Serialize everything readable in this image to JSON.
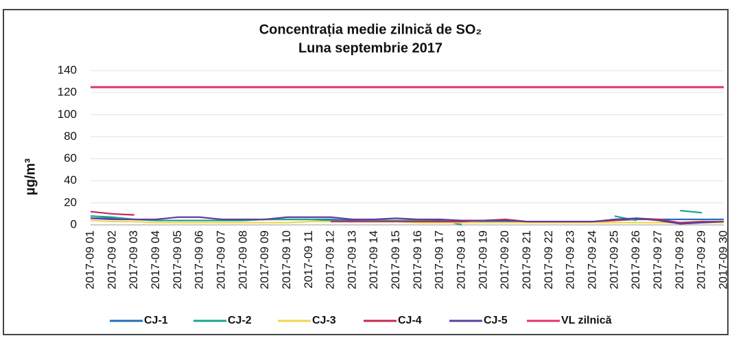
{
  "chart_data": {
    "type": "line",
    "title": "Concentrația medie zilnică de SO₂",
    "subtitle": "Luna septembrie 2017",
    "y_label": "µg/m³",
    "categories": [
      "2017-09 01",
      "2017-09 02",
      "2017-09 03",
      "2017-09 04",
      "2017-09 05",
      "2017-09 06",
      "2017-09 07",
      "2017-09 08",
      "2017-09 09",
      "2017-09 10",
      "2017-09 11",
      "2017-09 12",
      "2017-09 13",
      "2017-09 14",
      "2017-09 15",
      "2017-09 16",
      "2017-09 17",
      "2017-09 18",
      "2017-09 19",
      "2017-09 20",
      "2017-09 21",
      "2017-09 22",
      "2017-09 23",
      "2017-09 24",
      "2017-09 25",
      "2017-09 26",
      "2017-09 27",
      "2017-09 28",
      "2017-09 29",
      "2017-09 30"
    ],
    "series": [
      {
        "name": "CJ-1",
        "color": "#1f6fb5",
        "values": [
          6,
          6,
          5,
          4,
          4,
          4,
          4,
          4,
          5,
          5,
          5,
          5,
          4,
          4,
          4,
          4,
          4,
          4,
          3,
          3,
          3,
          3,
          3,
          3,
          4,
          5,
          5,
          5,
          5,
          5
        ]
      },
      {
        "name": "CJ-2",
        "color": "#1aa58a",
        "values": [
          8,
          7,
          5,
          4,
          4,
          4,
          4,
          4,
          5,
          5,
          5,
          4,
          3,
          4,
          4,
          4,
          5,
          0,
          null,
          null,
          null,
          null,
          null,
          null,
          8,
          4,
          null,
          13,
          11,
          null
        ]
      },
      {
        "name": "CJ-3",
        "color": "#f2d64b",
        "values": [
          4,
          3,
          3,
          2,
          2,
          2,
          2,
          2,
          2,
          2,
          3,
          3,
          3,
          3,
          3,
          2,
          2,
          2,
          2,
          2,
          2,
          2,
          2,
          2,
          2,
          2,
          2,
          2,
          2,
          2
        ]
      },
      {
        "name": "CJ-4",
        "color": "#c8284f",
        "values": [
          12,
          10,
          9,
          null,
          null,
          null,
          null,
          null,
          null,
          null,
          null,
          3,
          3,
          3,
          3,
          3,
          3,
          3,
          4,
          5,
          3,
          3,
          3,
          3,
          4,
          6,
          5,
          2,
          3,
          3
        ]
      },
      {
        "name": "CJ-5",
        "color": "#5b3fa0",
        "values": [
          6,
          5,
          5,
          5,
          7,
          7,
          5,
          5,
          5,
          7,
          7,
          7,
          5,
          5,
          6,
          5,
          5,
          4,
          4,
          4,
          3,
          3,
          3,
          3,
          5,
          6,
          4,
          1,
          2,
          3
        ]
      },
      {
        "name": "VL zilnică",
        "color": "#e0336a",
        "values": [
          125,
          125,
          125,
          125,
          125,
          125,
          125,
          125,
          125,
          125,
          125,
          125,
          125,
          125,
          125,
          125,
          125,
          125,
          125,
          125,
          125,
          125,
          125,
          125,
          125,
          125,
          125,
          125,
          125,
          125
        ]
      }
    ],
    "ylim": [
      0,
      140
    ],
    "yticks": [
      0,
      20,
      40,
      60,
      80,
      100,
      120,
      140
    ],
    "grid": true
  }
}
